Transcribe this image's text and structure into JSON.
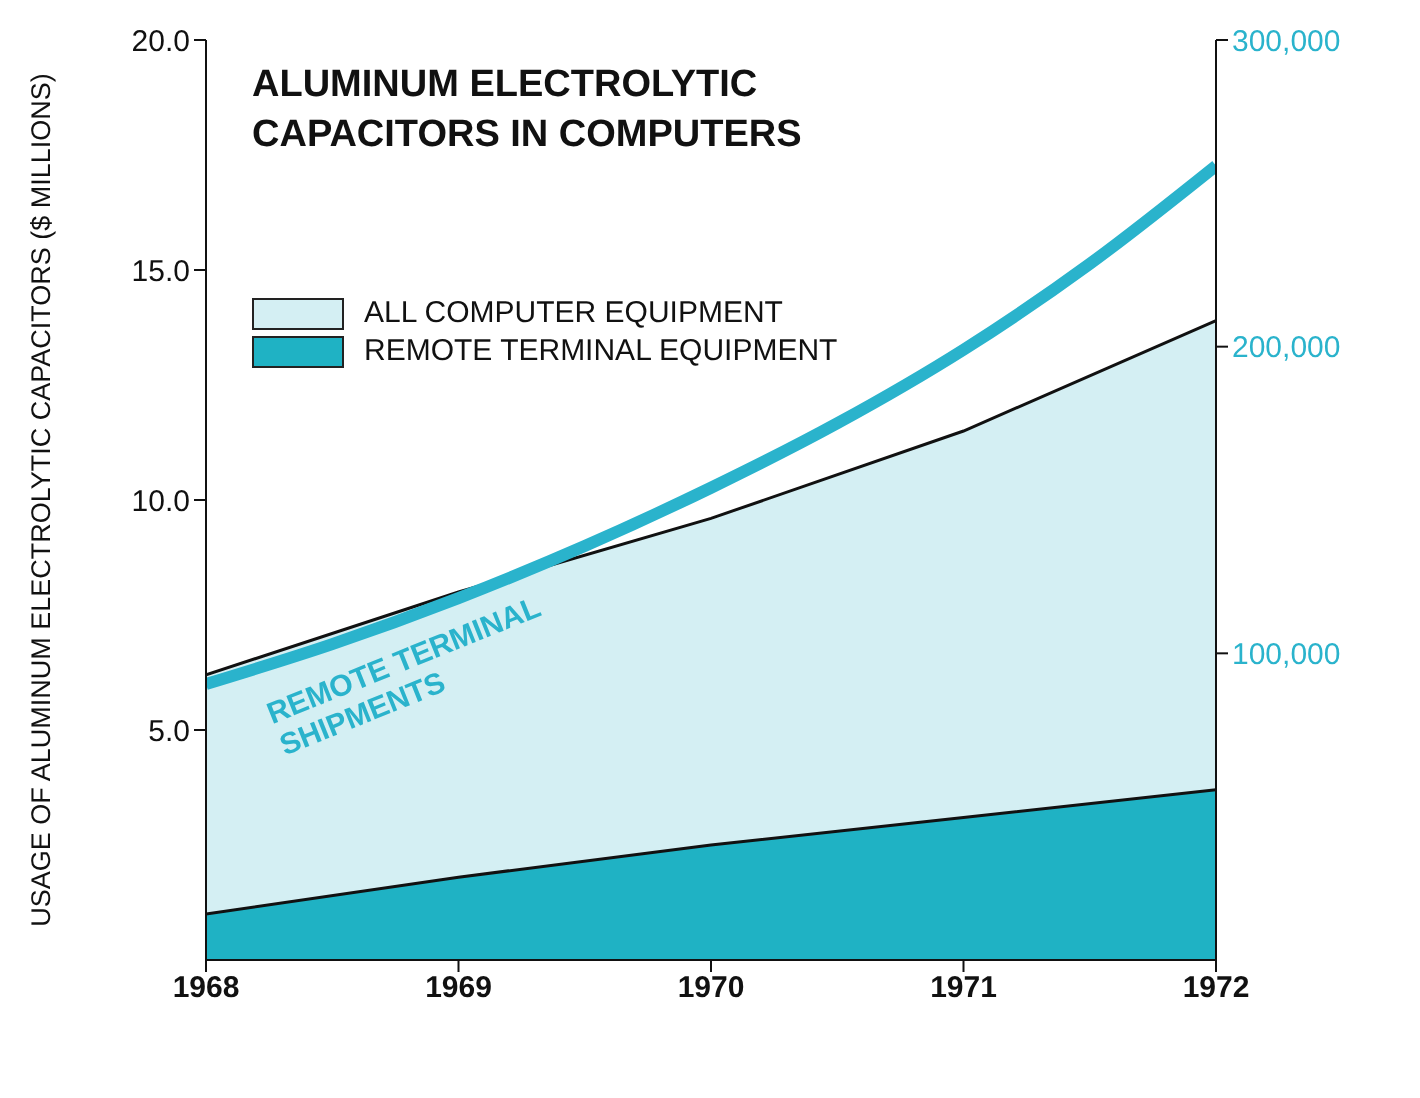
{
  "chart_data": {
    "type": "area",
    "title": "ALUMINUM ELECTROLYTIC\nCAPACITORS IN COMPUTERS",
    "ylabel": "USAGE OF ALUMINUM ELECTROLYTIC CAPACITORS ($ MILLIONS)",
    "x": [
      1968,
      1969,
      1970,
      1971,
      1972
    ],
    "series": [
      {
        "name": "ALL COMPUTER EQUIPMENT",
        "color": "#d4eff3",
        "values": [
          6.2,
          8.0,
          9.6,
          11.5,
          13.9
        ]
      },
      {
        "name": "REMOTE TERMINAL EQUIPMENT",
        "color": "#1fb2c4",
        "values": [
          1.0,
          1.8,
          2.5,
          3.1,
          3.7
        ]
      },
      {
        "name": "REMOTE TERMINAL SHIPMENTS",
        "type": "line",
        "axis": "y2",
        "color": "#2ab3cc",
        "x": [
          1968,
          1968.5,
          1969,
          1969.5,
          1970,
          1970.5,
          1971,
          1971.5,
          1972
        ],
        "values": [
          90000,
          103000,
          118000,
          135000,
          154000,
          175000,
          199000,
          227000,
          259000
        ]
      }
    ],
    "xlim": [
      1968,
      1972
    ],
    "xticks": [
      1968,
      1969,
      1970,
      1971,
      1972
    ],
    "ylim": [
      0,
      20
    ],
    "yticks": [
      {
        "value": 5,
        "label": "5.0"
      },
      {
        "value": 10,
        "label": "10.0"
      },
      {
        "value": 15,
        "label": "15.0"
      },
      {
        "value": 20,
        "label": "20.0"
      }
    ],
    "y2lim": [
      0,
      300000
    ],
    "y2ticks": [
      {
        "value": 100000,
        "label": "100,000"
      },
      {
        "value": 200000,
        "label": "200,000"
      },
      {
        "value": 300000,
        "label": "300,000"
      }
    ],
    "grid": false,
    "legend": "top left"
  }
}
